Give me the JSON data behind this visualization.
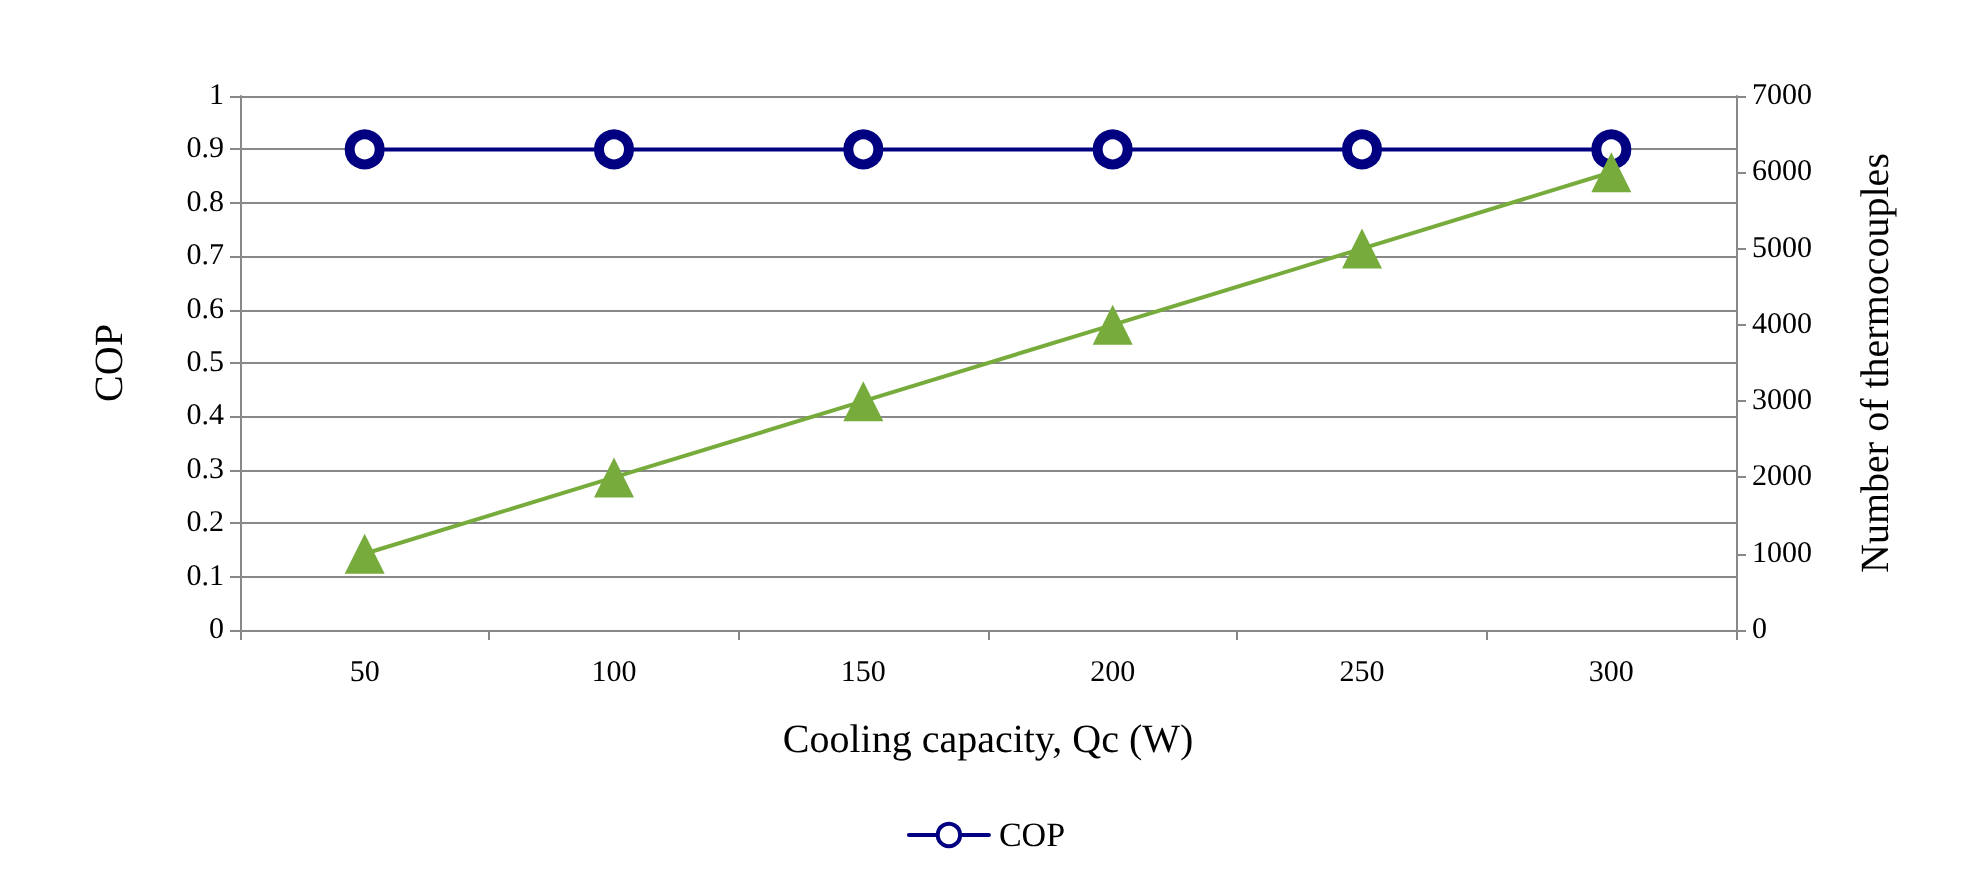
{
  "chart_data": {
    "type": "line",
    "xlabel": "Cooling capacity, Qc (W)",
    "ylabel": "COP",
    "y2label": "Number of thermocouples",
    "categories": [
      "50",
      "100",
      "150",
      "200",
      "250",
      "300"
    ],
    "series": [
      {
        "name": "COP",
        "color": "#000080",
        "values": [
          0.9,
          0.9,
          0.9,
          0.9,
          0.9,
          0.9
        ],
        "marker": "circle"
      },
      {
        "color": "#77ac3c",
        "values": [
          1000,
          2000,
          3000,
          4000,
          5000,
          6000
        ],
        "axis": "y2",
        "marker": "triangle"
      }
    ],
    "ylim": [
      0,
      1
    ],
    "yticks": [
      0,
      0.1,
      0.2,
      0.3,
      0.4,
      0.5,
      0.6,
      0.7,
      0.8,
      0.9,
      1
    ],
    "y2lim": [
      0,
      7000
    ],
    "y2ticks": [
      0,
      1000,
      2000,
      3000,
      4000,
      5000,
      6000,
      7000
    ],
    "grid": "y",
    "legend": "bottom",
    "line_style": "solid"
  }
}
